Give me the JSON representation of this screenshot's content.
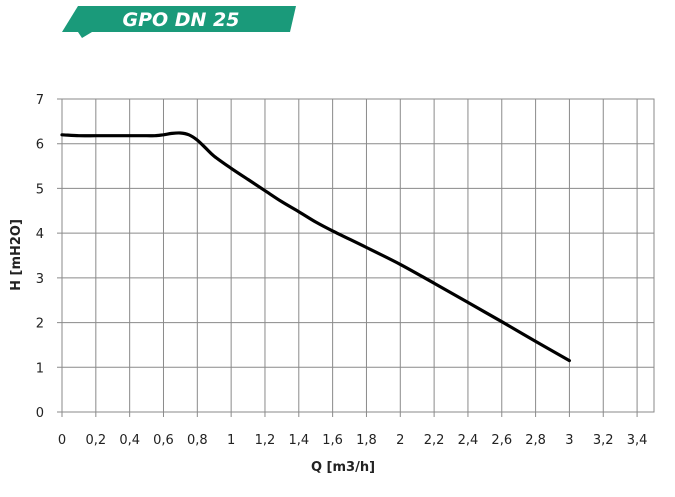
{
  "banner": {
    "title": "GPO DN 25",
    "color": "#1a9a7a"
  },
  "chart_data": {
    "type": "line",
    "title": "",
    "xlabel": "Q [m3/h]",
    "ylabel": "H [mH2O]",
    "xlim": [
      0,
      3.5
    ],
    "ylim": [
      0,
      7
    ],
    "grid": true,
    "x_ticks": [
      0,
      0.2,
      0.4,
      0.6,
      0.8,
      1,
      1.2,
      1.4,
      1.6,
      1.8,
      2,
      2.2,
      2.4,
      2.6,
      2.8,
      3,
      3.2,
      3.4
    ],
    "x_tick_labels": [
      "0",
      "0,2",
      "0,4",
      "0,6",
      "0,8",
      "1",
      "1,2",
      "1,4",
      "1,6",
      "1,8",
      "2",
      "2,2",
      "2,4",
      "2,6",
      "2,8",
      "3",
      "3,2",
      "3,4"
    ],
    "y_ticks": [
      0,
      1,
      2,
      3,
      4,
      5,
      6,
      7
    ],
    "y_tick_labels": [
      "0",
      "1",
      "2",
      "3",
      "4",
      "5",
      "6",
      "7"
    ],
    "line_color": "#000000",
    "series": [
      {
        "x": [
          0,
          0.1,
          0.2,
          0.3,
          0.4,
          0.5,
          0.55,
          0.6,
          0.65,
          0.7,
          0.75,
          0.8,
          0.85,
          0.9,
          1.0,
          1.1,
          1.2,
          1.3,
          1.4,
          1.5,
          1.6,
          1.8,
          2.0,
          2.2,
          2.4,
          2.6,
          2.8,
          3.0
        ],
        "y": [
          6.2,
          6.18,
          6.18,
          6.18,
          6.18,
          6.18,
          6.18,
          6.2,
          6.23,
          6.24,
          6.2,
          6.08,
          5.9,
          5.72,
          5.45,
          5.2,
          4.95,
          4.7,
          4.48,
          4.25,
          4.05,
          3.68,
          3.3,
          2.88,
          2.45,
          2.02,
          1.58,
          1.15
        ]
      }
    ]
  }
}
